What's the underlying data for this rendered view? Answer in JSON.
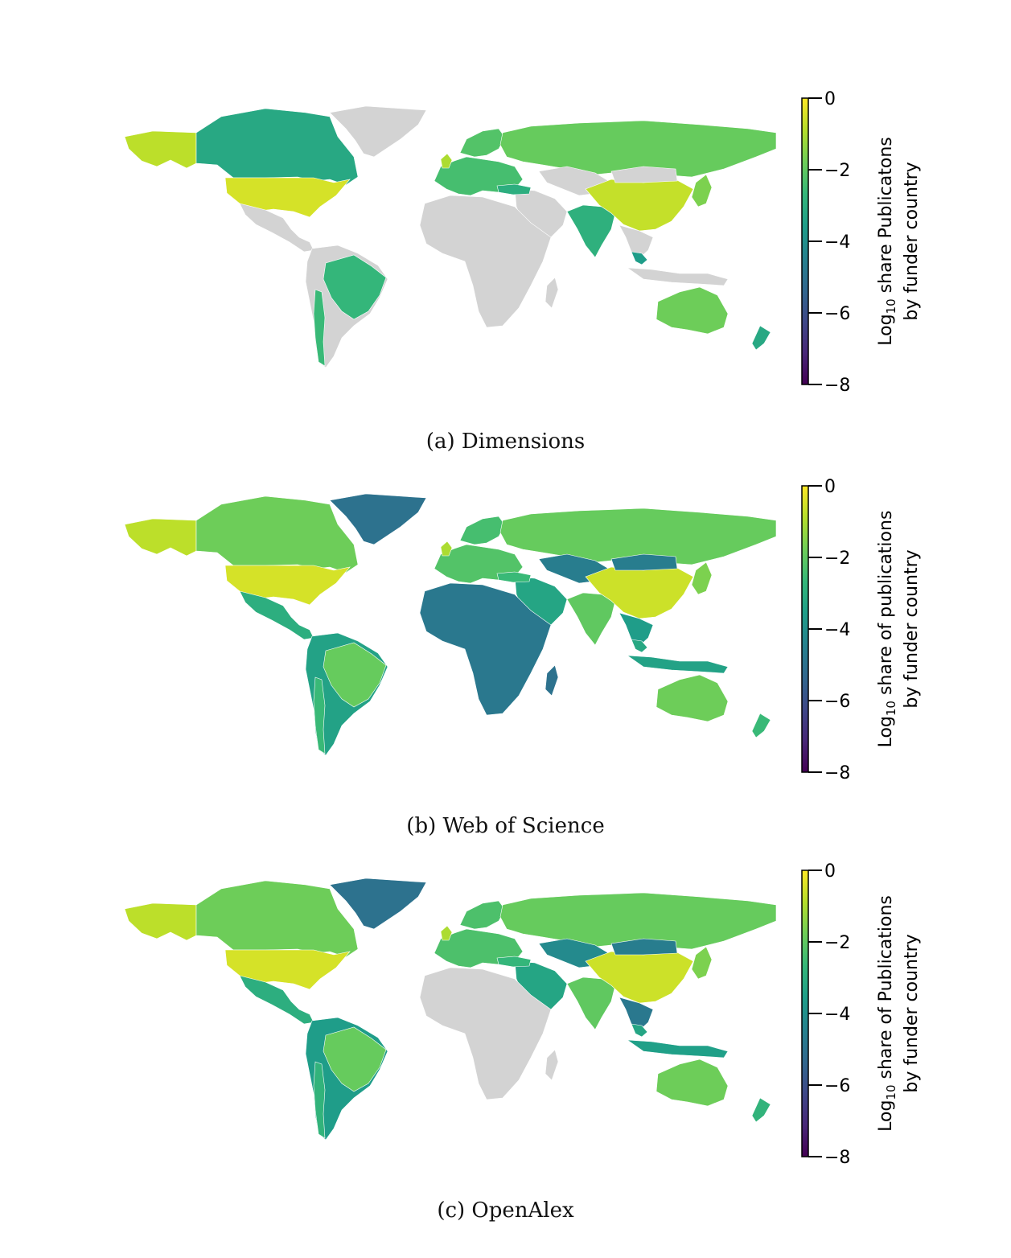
{
  "colors": {
    "no_data": "#d3d3d3",
    "viridis": [
      "#440154",
      "#482878",
      "#3e4989",
      "#31688e",
      "#26828e",
      "#1f9e89",
      "#35b779",
      "#6ece58",
      "#b5de2b",
      "#fde725"
    ]
  },
  "panels": [
    {
      "caption": "(a) Dimensions",
      "colorbar": {
        "label_line1_prefix": "Log",
        "label_sub": "10",
        "label_line1_rest": " share Publicatons",
        "label_line2": "by funder country",
        "ticks": [
          "0",
          "−2",
          "−4",
          "−6",
          "−8"
        ],
        "range": [
          -8,
          0
        ]
      },
      "regions": [
        {
          "id": "alaska",
          "v": -0.8
        },
        {
          "id": "canada",
          "v": -3.2
        },
        {
          "id": "usa",
          "v": -0.5
        },
        {
          "id": "mexico_ca",
          "v": null
        },
        {
          "id": "greenland",
          "v": null
        },
        {
          "id": "south_america",
          "v": null
        },
        {
          "id": "brazil",
          "v": -2.7
        },
        {
          "id": "chile",
          "v": -2.6
        },
        {
          "id": "europe",
          "v": -2.4
        },
        {
          "id": "scandinavia",
          "v": -2.2
        },
        {
          "id": "uk",
          "v": -1.0
        },
        {
          "id": "russia",
          "v": -1.9
        },
        {
          "id": "mideast",
          "v": null
        },
        {
          "id": "turkey",
          "v": -3.0
        },
        {
          "id": "africa",
          "v": null
        },
        {
          "id": "madagascar",
          "v": null
        },
        {
          "id": "central_asia",
          "v": null
        },
        {
          "id": "india",
          "v": -2.9
        },
        {
          "id": "china",
          "v": -0.7
        },
        {
          "id": "mongolia",
          "v": null
        },
        {
          "id": "se_asia",
          "v": null
        },
        {
          "id": "malaysia",
          "v": -3.6
        },
        {
          "id": "indonesia",
          "v": null
        },
        {
          "id": "japan",
          "v": -1.6
        },
        {
          "id": "australia",
          "v": -1.8
        },
        {
          "id": "new_zealand",
          "v": -3.2
        }
      ]
    },
    {
      "caption": "(b) Web of Science",
      "colorbar": {
        "label_line1_prefix": "Log",
        "label_sub": "10",
        "label_line1_rest": " share of publications",
        "label_line2": "by funder country",
        "ticks": [
          "0",
          "−2",
          "−4",
          "−6",
          "−8"
        ],
        "range": [
          -8,
          0
        ]
      },
      "regions": [
        {
          "id": "alaska",
          "v": -0.8
        },
        {
          "id": "canada",
          "v": -1.8
        },
        {
          "id": "usa",
          "v": -0.5
        },
        {
          "id": "mexico_ca",
          "v": -3.0
        },
        {
          "id": "greenland",
          "v": -5.0
        },
        {
          "id": "south_america",
          "v": -3.4
        },
        {
          "id": "brazil",
          "v": -1.9
        },
        {
          "id": "chile",
          "v": -2.6
        },
        {
          "id": "europe",
          "v": -2.2
        },
        {
          "id": "scandinavia",
          "v": -2.4
        },
        {
          "id": "uk",
          "v": -1.0
        },
        {
          "id": "russia",
          "v": -1.9
        },
        {
          "id": "mideast",
          "v": -3.3
        },
        {
          "id": "turkey",
          "v": -2.6
        },
        {
          "id": "africa",
          "v": -4.8
        },
        {
          "id": "madagascar",
          "v": -5.0
        },
        {
          "id": "central_asia",
          "v": -4.6
        },
        {
          "id": "india",
          "v": -2.0
        },
        {
          "id": "china",
          "v": -0.6
        },
        {
          "id": "mongolia",
          "v": -4.6
        },
        {
          "id": "se_asia",
          "v": -3.6
        },
        {
          "id": "malaysia",
          "v": -3.2
        },
        {
          "id": "indonesia",
          "v": -3.4
        },
        {
          "id": "japan",
          "v": -1.6
        },
        {
          "id": "australia",
          "v": -1.8
        },
        {
          "id": "new_zealand",
          "v": -2.6
        }
      ]
    },
    {
      "caption": "(c) OpenAlex",
      "colorbar": {
        "label_line1_prefix": "Log",
        "label_sub": "10",
        "label_line1_rest": " share of Publications",
        "label_line2": "by funder country",
        "ticks": [
          "0",
          "−2",
          "−4",
          "−6",
          "−8"
        ],
        "range": [
          -8,
          0
        ]
      },
      "regions": [
        {
          "id": "alaska",
          "v": -0.8
        },
        {
          "id": "canada",
          "v": -1.8
        },
        {
          "id": "usa",
          "v": -0.5
        },
        {
          "id": "mexico_ca",
          "v": -3.0
        },
        {
          "id": "greenland",
          "v": -5.0
        },
        {
          "id": "south_america",
          "v": -3.6
        },
        {
          "id": "brazil",
          "v": -1.9
        },
        {
          "id": "chile",
          "v": -2.8
        },
        {
          "id": "europe",
          "v": -2.3
        },
        {
          "id": "scandinavia",
          "v": -2.3
        },
        {
          "id": "uk",
          "v": -1.0
        },
        {
          "id": "russia",
          "v": -1.9
        },
        {
          "id": "mideast",
          "v": -3.3
        },
        {
          "id": "turkey",
          "v": -2.7
        },
        {
          "id": "africa",
          "v": null
        },
        {
          "id": "madagascar",
          "v": null
        },
        {
          "id": "central_asia",
          "v": -4.2
        },
        {
          "id": "india",
          "v": -2.0
        },
        {
          "id": "china",
          "v": -0.6
        },
        {
          "id": "mongolia",
          "v": -4.6
        },
        {
          "id": "se_asia",
          "v": -4.8
        },
        {
          "id": "malaysia",
          "v": -3.3
        },
        {
          "id": "indonesia",
          "v": -3.5
        },
        {
          "id": "japan",
          "v": -1.6
        },
        {
          "id": "australia",
          "v": -1.8
        },
        {
          "id": "new_zealand",
          "v": -2.8
        }
      ]
    }
  ]
}
